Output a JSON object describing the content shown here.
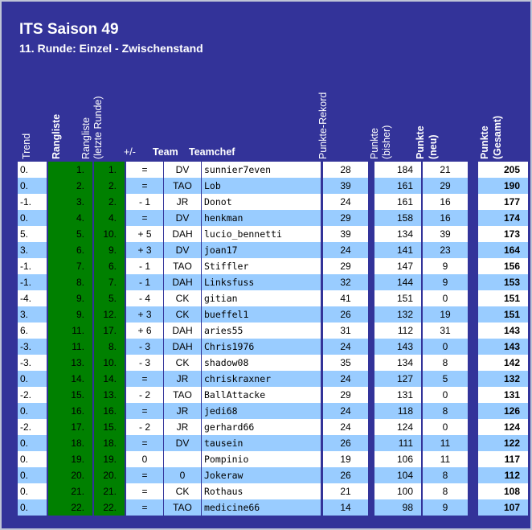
{
  "title": "ITS Saison 49",
  "subtitle": "11. Runde: Einzel - Zwischenstand",
  "headers": {
    "trend": "Trend",
    "rangliste": "Rangliste",
    "rangliste_letzte_1": "Rangliste",
    "rangliste_letzte_2": "(letzte Runde)",
    "plusminus": "+/-",
    "team": "Team",
    "teamchef": "Teamchef",
    "punkte_rekord": "Punkte-Rekord",
    "punkte_bisher_1": "Punkte",
    "punkte_bisher_2": "(bisher)",
    "punkte_neu_1": "Punkte",
    "punkte_neu_2": "(neu)",
    "punkte_gesamt_1": "Punkte",
    "punkte_gesamt_2": "(Gesamt)"
  },
  "colors": {
    "background": "#333399",
    "row_white": "#ffffff",
    "row_blue": "#99ccff",
    "rank_green": "#008000",
    "header_text": "#ffffff"
  },
  "rows": [
    {
      "trend": "0.",
      "rank": "1.",
      "last": "1.",
      "pm": "=",
      "team": "DV",
      "chef": "sunnier7even",
      "rekord": "28",
      "bisher": "184",
      "neu": "21",
      "gesamt": "205"
    },
    {
      "trend": "0.",
      "rank": "2.",
      "last": "2.",
      "pm": "=",
      "team": "TAO",
      "chef": "Lob",
      "rekord": "39",
      "bisher": "161",
      "neu": "29",
      "gesamt": "190"
    },
    {
      "trend": "-1.",
      "rank": "3.",
      "last": "2.",
      "pm": "- 1",
      "team": "JR",
      "chef": "Donot",
      "rekord": "24",
      "bisher": "161",
      "neu": "16",
      "gesamt": "177"
    },
    {
      "trend": "0.",
      "rank": "4.",
      "last": "4.",
      "pm": "=",
      "team": "DV",
      "chef": "henkman",
      "rekord": "29",
      "bisher": "158",
      "neu": "16",
      "gesamt": "174"
    },
    {
      "trend": "5.",
      "rank": "5.",
      "last": "10.",
      "pm": "+ 5",
      "team": "DAH",
      "chef": "lucio_bennetti",
      "rekord": "39",
      "bisher": "134",
      "neu": "39",
      "gesamt": "173"
    },
    {
      "trend": "3.",
      "rank": "6.",
      "last": "9.",
      "pm": "+ 3",
      "team": "DV",
      "chef": "joan17",
      "rekord": "24",
      "bisher": "141",
      "neu": "23",
      "gesamt": "164"
    },
    {
      "trend": "-1.",
      "rank": "7.",
      "last": "6.",
      "pm": "- 1",
      "team": "TAO",
      "chef": "Stiffler",
      "rekord": "29",
      "bisher": "147",
      "neu": "9",
      "gesamt": "156"
    },
    {
      "trend": "-1.",
      "rank": "8.",
      "last": "7.",
      "pm": "- 1",
      "team": "DAH",
      "chef": "Linksfuss",
      "rekord": "32",
      "bisher": "144",
      "neu": "9",
      "gesamt": "153"
    },
    {
      "trend": "-4.",
      "rank": "9.",
      "last": "5.",
      "pm": "- 4",
      "team": "CK",
      "chef": "gitian",
      "rekord": "41",
      "bisher": "151",
      "neu": "0",
      "gesamt": "151"
    },
    {
      "trend": "3.",
      "rank": "9.",
      "last": "12.",
      "pm": "+ 3",
      "team": "CK",
      "chef": "bueffel1",
      "rekord": "26",
      "bisher": "132",
      "neu": "19",
      "gesamt": "151"
    },
    {
      "trend": "6.",
      "rank": "11.",
      "last": "17.",
      "pm": "+ 6",
      "team": "DAH",
      "chef": "aries55",
      "rekord": "31",
      "bisher": "112",
      "neu": "31",
      "gesamt": "143"
    },
    {
      "trend": "-3.",
      "rank": "11.",
      "last": "8.",
      "pm": "- 3",
      "team": "DAH",
      "chef": "Chris1976",
      "rekord": "24",
      "bisher": "143",
      "neu": "0",
      "gesamt": "143"
    },
    {
      "trend": "-3.",
      "rank": "13.",
      "last": "10.",
      "pm": "- 3",
      "team": "CK",
      "chef": "shadow08",
      "rekord": "35",
      "bisher": "134",
      "neu": "8",
      "gesamt": "142"
    },
    {
      "trend": "0.",
      "rank": "14.",
      "last": "14.",
      "pm": "=",
      "team": "JR",
      "chef": "chriskraxner",
      "rekord": "24",
      "bisher": "127",
      "neu": "5",
      "gesamt": "132"
    },
    {
      "trend": "-2.",
      "rank": "15.",
      "last": "13.",
      "pm": "- 2",
      "team": "TAO",
      "chef": "BallAttacke",
      "rekord": "29",
      "bisher": "131",
      "neu": "0",
      "gesamt": "131"
    },
    {
      "trend": "0.",
      "rank": "16.",
      "last": "16.",
      "pm": "=",
      "team": "JR",
      "chef": "jedi68",
      "rekord": "24",
      "bisher": "118",
      "neu": "8",
      "gesamt": "126"
    },
    {
      "trend": "-2.",
      "rank": "17.",
      "last": "15.",
      "pm": "- 2",
      "team": "JR",
      "chef": "gerhard66",
      "rekord": "24",
      "bisher": "124",
      "neu": "0",
      "gesamt": "124"
    },
    {
      "trend": "0.",
      "rank": "18.",
      "last": "18.",
      "pm": "=",
      "team": "DV",
      "chef": "tausein",
      "rekord": "26",
      "bisher": "111",
      "neu": "11",
      "gesamt": "122"
    },
    {
      "trend": "0.",
      "rank": "19.",
      "last": "19.",
      "pm": "0",
      "team": "",
      "chef": "Pompinio",
      "rekord": "19",
      "bisher": "106",
      "neu": "11",
      "gesamt": "117"
    },
    {
      "trend": "0.",
      "rank": "20.",
      "last": "20.",
      "pm": "=",
      "team": "0",
      "chef": "Jokeraw",
      "rekord": "26",
      "bisher": "104",
      "neu": "8",
      "gesamt": "112"
    },
    {
      "trend": "0.",
      "rank": "21.",
      "last": "21.",
      "pm": "=",
      "team": "CK",
      "chef": "Rothaus",
      "rekord": "21",
      "bisher": "100",
      "neu": "8",
      "gesamt": "108"
    },
    {
      "trend": "0.",
      "rank": "22.",
      "last": "22.",
      "pm": "=",
      "team": "TAO",
      "chef": "medicine66",
      "rekord": "14",
      "bisher": "98",
      "neu": "9",
      "gesamt": "107"
    }
  ]
}
